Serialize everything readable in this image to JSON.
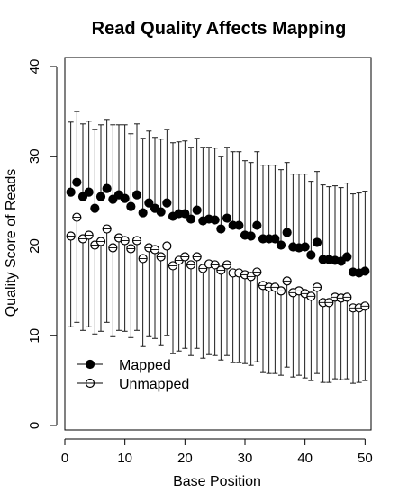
{
  "chart_data": {
    "type": "scatter",
    "title": "Read Quality Affects Mapping",
    "xlabel": "Base Position",
    "ylabel": "Quality Score of Reads",
    "xlim": [
      0,
      51
    ],
    "ylim": [
      -0.5,
      41
    ],
    "xticks": [
      0,
      10,
      20,
      30,
      40,
      50
    ],
    "yticks": [
      0,
      10,
      20,
      30,
      40
    ],
    "error_bars": "upper for Mapped, lower for Unmapped",
    "legend_position": "bottom-left",
    "series": [
      {
        "name": "Mapped",
        "marker": "filled-circle",
        "x": [
          1,
          2,
          3,
          4,
          5,
          6,
          7,
          8,
          9,
          10,
          11,
          12,
          13,
          14,
          15,
          16,
          17,
          18,
          19,
          20,
          21,
          22,
          23,
          24,
          25,
          26,
          27,
          28,
          29,
          30,
          31,
          32,
          33,
          34,
          35,
          36,
          37,
          38,
          39,
          40,
          41,
          42,
          43,
          44,
          45,
          46,
          47,
          48,
          49,
          50
        ],
        "y": [
          26.0,
          27.1,
          25.5,
          26.0,
          24.2,
          25.5,
          26.4,
          25.2,
          25.7,
          25.3,
          24.4,
          25.7,
          23.7,
          24.8,
          24.2,
          23.8,
          24.8,
          23.3,
          23.6,
          23.6,
          23.0,
          24.0,
          22.8,
          23.0,
          22.9,
          21.9,
          23.1,
          22.3,
          22.3,
          21.2,
          21.1,
          22.3,
          20.8,
          20.8,
          20.8,
          20.1,
          21.5,
          19.9,
          19.8,
          19.9,
          19.0,
          20.4,
          18.5,
          18.5,
          18.4,
          18.3,
          18.8,
          17.1,
          17.0,
          17.2
        ],
        "err_upper": [
          33.8,
          35.0,
          33.6,
          33.9,
          33.0,
          33.5,
          34.1,
          33.5,
          33.5,
          33.5,
          32.5,
          33.6,
          32.0,
          32.8,
          32.1,
          31.9,
          33.0,
          31.5,
          31.6,
          31.7,
          31.0,
          32.0,
          31.0,
          31.0,
          30.9,
          30.0,
          31.0,
          30.5,
          30.5,
          29.5,
          29.3,
          30.5,
          29.0,
          29.0,
          29.0,
          28.5,
          29.3,
          28.0,
          28.0,
          28.0,
          27.2,
          28.3,
          26.8,
          26.6,
          26.7,
          26.5,
          27.0,
          25.8,
          25.9,
          26.1
        ]
      },
      {
        "name": "Unmapped",
        "marker": "open-circle",
        "x": [
          1,
          2,
          3,
          4,
          5,
          6,
          7,
          8,
          9,
          10,
          11,
          12,
          13,
          14,
          15,
          16,
          17,
          18,
          19,
          20,
          21,
          22,
          23,
          24,
          25,
          26,
          27,
          28,
          29,
          30,
          31,
          32,
          33,
          34,
          35,
          36,
          37,
          38,
          39,
          40,
          41,
          42,
          43,
          44,
          45,
          46,
          47,
          48,
          49,
          50
        ],
        "y": [
          21.1,
          23.2,
          20.8,
          21.2,
          20.1,
          20.5,
          21.9,
          19.8,
          20.9,
          20.6,
          19.7,
          20.6,
          18.6,
          19.8,
          19.6,
          18.8,
          20.0,
          17.8,
          18.4,
          18.8,
          17.9,
          18.8,
          17.5,
          18.0,
          17.9,
          17.3,
          17.9,
          17.0,
          17.0,
          16.8,
          16.6,
          17.1,
          15.6,
          15.4,
          15.4,
          15.0,
          16.1,
          14.8,
          15.0,
          14.7,
          14.4,
          15.4,
          13.7,
          13.7,
          14.3,
          14.2,
          14.3,
          13.1,
          13.1,
          13.3
        ],
        "err_lower": [
          11.0,
          11.5,
          10.6,
          11.0,
          10.2,
          10.5,
          11.5,
          9.9,
          10.6,
          10.5,
          9.8,
          10.6,
          8.8,
          9.9,
          9.7,
          8.9,
          10.0,
          8.0,
          8.3,
          8.6,
          7.8,
          8.6,
          7.5,
          7.9,
          7.8,
          7.3,
          7.8,
          7.0,
          7.0,
          6.9,
          6.7,
          7.1,
          5.9,
          5.8,
          5.8,
          5.6,
          6.5,
          5.4,
          5.6,
          5.3,
          5.0,
          5.8,
          4.8,
          4.8,
          5.2,
          5.1,
          5.2,
          4.7,
          4.8,
          5.0
        ]
      }
    ]
  }
}
